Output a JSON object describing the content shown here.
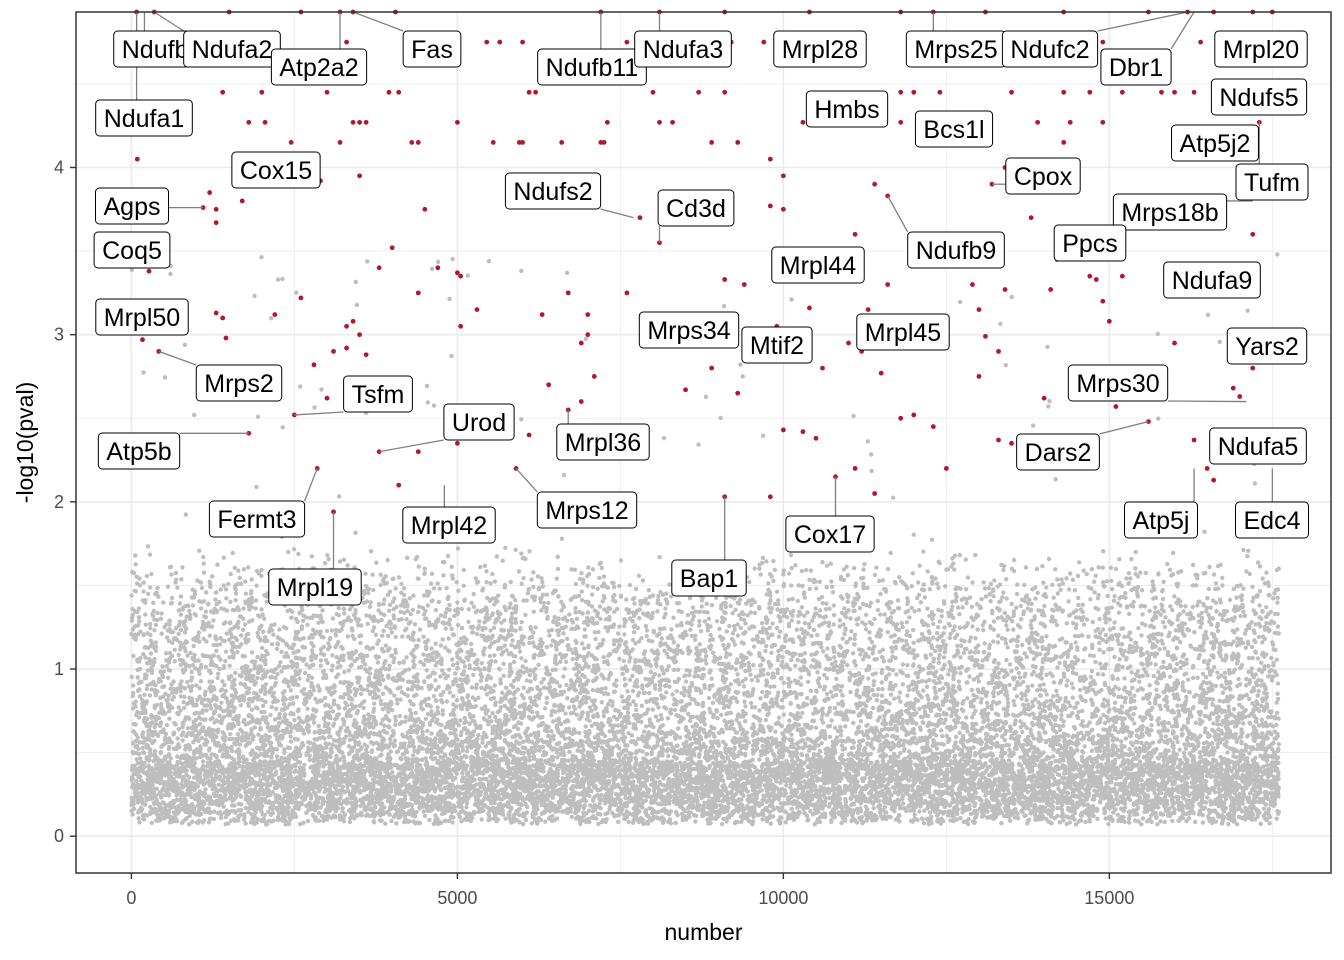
{
  "chart_data": {
    "type": "scatter",
    "title": "",
    "xlabel": "number",
    "ylabel": "-log10(pval)",
    "xlim": [
      -850,
      18400
    ],
    "ylim": [
      -0.22,
      4.93
    ],
    "x_ticks": [
      0,
      5000,
      10000,
      15000
    ],
    "y_ticks": [
      0,
      1,
      2,
      3,
      4
    ],
    "x_tick_labels": [
      "0",
      "5000",
      "10000",
      "15000"
    ],
    "y_tick_labels": [
      "0",
      "1",
      "2",
      "3",
      "4"
    ],
    "grid": true,
    "legend": "none",
    "colors": {
      "background_points": "#bebebe",
      "significant_points": "#b2182b",
      "grid": "#ebebeb",
      "panel_border": "#333333"
    },
    "background_series": {
      "n_points": 17600,
      "x_range": [
        0,
        17600
      ],
      "typical_y_range": [
        0.05,
        1.6
      ],
      "sparse_upper_max": 3.5
    },
    "significant_points": [
      [
        80,
        4.93
      ],
      [
        350,
        4.93
      ],
      [
        1500,
        4.93
      ],
      [
        2600,
        4.93
      ],
      [
        3200,
        4.93
      ],
      [
        3400,
        4.93
      ],
      [
        4050,
        4.93
      ],
      [
        7200,
        4.93
      ],
      [
        8100,
        4.93
      ],
      [
        9100,
        4.93
      ],
      [
        10400,
        4.93
      ],
      [
        11800,
        4.93
      ],
      [
        12300,
        4.93
      ],
      [
        13100,
        4.93
      ],
      [
        14300,
        4.93
      ],
      [
        15600,
        4.93
      ],
      [
        16200,
        4.93
      ],
      [
        16600,
        4.93
      ],
      [
        17200,
        4.93
      ],
      [
        17500,
        4.93
      ],
      [
        1900,
        4.75
      ],
      [
        3300,
        4.75
      ],
      [
        5450,
        4.75
      ],
      [
        5650,
        4.75
      ],
      [
        6000,
        4.75
      ],
      [
        7600,
        4.75
      ],
      [
        7900,
        4.75
      ],
      [
        8300,
        4.75
      ],
      [
        9200,
        4.75
      ],
      [
        9700,
        4.75
      ],
      [
        11200,
        4.75
      ],
      [
        14900,
        4.75
      ],
      [
        16400,
        4.75
      ],
      [
        16800,
        4.75
      ],
      [
        1400,
        4.45
      ],
      [
        2000,
        4.45
      ],
      [
        3000,
        4.45
      ],
      [
        3950,
        4.45
      ],
      [
        4100,
        4.45
      ],
      [
        6100,
        4.45
      ],
      [
        6200,
        4.45
      ],
      [
        8000,
        4.45
      ],
      [
        8700,
        4.45
      ],
      [
        9100,
        4.45
      ],
      [
        11800,
        4.45
      ],
      [
        12000,
        4.45
      ],
      [
        12400,
        4.45
      ],
      [
        13500,
        4.45
      ],
      [
        14300,
        4.45
      ],
      [
        14700,
        4.45
      ],
      [
        15200,
        4.45
      ],
      [
        15800,
        4.45
      ],
      [
        16000,
        4.45
      ],
      [
        16300,
        4.45
      ],
      [
        1800,
        4.27
      ],
      [
        2050,
        4.27
      ],
      [
        3400,
        4.27
      ],
      [
        3500,
        4.27
      ],
      [
        3600,
        4.27
      ],
      [
        5000,
        4.27
      ],
      [
        7300,
        4.27
      ],
      [
        8100,
        4.27
      ],
      [
        8300,
        4.27
      ],
      [
        10300,
        4.27
      ],
      [
        11200,
        4.27
      ],
      [
        11800,
        4.27
      ],
      [
        12700,
        4.27
      ],
      [
        13900,
        4.27
      ],
      [
        14400,
        4.27
      ],
      [
        14900,
        4.27
      ],
      [
        17300,
        4.27
      ],
      [
        2450,
        4.15
      ],
      [
        3200,
        4.15
      ],
      [
        4300,
        4.15
      ],
      [
        4400,
        4.15
      ],
      [
        5550,
        4.15
      ],
      [
        5950,
        4.15
      ],
      [
        6000,
        4.15
      ],
      [
        6600,
        4.15
      ],
      [
        7200,
        4.15
      ],
      [
        7250,
        4.15
      ],
      [
        8900,
        4.15
      ],
      [
        9300,
        4.15
      ],
      [
        12600,
        4.15
      ],
      [
        14300,
        4.15
      ],
      [
        16600,
        4.15
      ],
      [
        90,
        4.05
      ],
      [
        9800,
        4.05
      ],
      [
        13400,
        4.0
      ],
      [
        3500,
        3.95
      ],
      [
        2900,
        3.92
      ],
      [
        10000,
        3.95
      ],
      [
        11400,
        3.9
      ],
      [
        13200,
        3.9
      ],
      [
        1200,
        3.85
      ],
      [
        11600,
        3.83
      ],
      [
        1100,
        3.76
      ],
      [
        1300,
        3.75
      ],
      [
        1700,
        3.8
      ],
      [
        9800,
        3.77
      ],
      [
        10000,
        3.75
      ],
      [
        4500,
        3.75
      ],
      [
        13800,
        3.7
      ],
      [
        7800,
        3.7
      ],
      [
        1300,
        3.67
      ],
      [
        8100,
        3.55
      ],
      [
        17200,
        3.6
      ],
      [
        11100,
        3.6
      ],
      [
        270,
        3.38
      ],
      [
        4000,
        3.52
      ],
      [
        14200,
        3.45
      ],
      [
        14300,
        3.5
      ],
      [
        3800,
        3.4
      ],
      [
        4700,
        3.4
      ],
      [
        5000,
        3.37
      ],
      [
        5050,
        3.35
      ],
      [
        9100,
        3.33
      ],
      [
        9400,
        3.3
      ],
      [
        10200,
        3.33
      ],
      [
        11600,
        3.3
      ],
      [
        12900,
        3.3
      ],
      [
        13400,
        3.27
      ],
      [
        14700,
        3.35
      ],
      [
        14800,
        3.33
      ],
      [
        15200,
        3.35
      ],
      [
        2600,
        3.22
      ],
      [
        4400,
        3.25
      ],
      [
        6700,
        3.25
      ],
      [
        7600,
        3.25
      ],
      [
        14100,
        3.27
      ],
      [
        1300,
        3.13
      ],
      [
        1400,
        3.1
      ],
      [
        2200,
        3.12
      ],
      [
        5300,
        3.15
      ],
      [
        6300,
        3.12
      ],
      [
        7000,
        3.12
      ],
      [
        10400,
        3.16
      ],
      [
        11300,
        3.15
      ],
      [
        13000,
        3.15
      ],
      [
        14900,
        3.2
      ],
      [
        15000,
        3.08
      ],
      [
        3300,
        3.05
      ],
      [
        3400,
        3.08
      ],
      [
        3500,
        3.0
      ],
      [
        5050,
        3.05
      ],
      [
        7000,
        3.0
      ],
      [
        8800,
        3.05
      ],
      [
        9900,
        3.05
      ],
      [
        12200,
        3.05
      ],
      [
        13100,
        2.99
      ],
      [
        170,
        2.97
      ],
      [
        420,
        2.9
      ],
      [
        1450,
        2.98
      ],
      [
        3100,
        2.9
      ],
      [
        3300,
        2.92
      ],
      [
        3600,
        2.88
      ],
      [
        6900,
        2.95
      ],
      [
        8900,
        2.8
      ],
      [
        11000,
        2.95
      ],
      [
        11200,
        2.9
      ],
      [
        10600,
        2.8
      ],
      [
        13300,
        2.9
      ],
      [
        16000,
        2.95
      ],
      [
        17200,
        2.8
      ],
      [
        9500,
        2.85
      ],
      [
        2800,
        2.82
      ],
      [
        13000,
        2.75
      ],
      [
        7100,
        2.75
      ],
      [
        11500,
        2.77
      ],
      [
        6400,
        2.7
      ],
      [
        8500,
        2.67
      ],
      [
        9300,
        2.65
      ],
      [
        16900,
        2.68
      ],
      [
        17000,
        2.63
      ],
      [
        3000,
        2.62
      ],
      [
        6900,
        2.6
      ],
      [
        14000,
        2.62
      ],
      [
        15100,
        2.57
      ],
      [
        6700,
        2.55
      ],
      [
        11800,
        2.5
      ],
      [
        12000,
        2.52
      ],
      [
        15600,
        2.48
      ],
      [
        12300,
        2.45
      ],
      [
        10000,
        2.43
      ],
      [
        10300,
        2.42
      ],
      [
        10500,
        2.38
      ],
      [
        13300,
        2.37
      ],
      [
        13500,
        2.35
      ],
      [
        16300,
        2.37
      ],
      [
        1800,
        2.41
      ],
      [
        2500,
        2.52
      ],
      [
        3800,
        2.3
      ],
      [
        4400,
        2.3
      ],
      [
        5000,
        2.35
      ],
      [
        6100,
        2.4
      ],
      [
        2850,
        2.2
      ],
      [
        5900,
        2.2
      ],
      [
        11100,
        2.2
      ],
      [
        12500,
        2.2
      ],
      [
        16500,
        2.2
      ],
      [
        10800,
        2.15
      ],
      [
        4100,
        2.1
      ],
      [
        16600,
        2.13
      ],
      [
        11400,
        2.05
      ],
      [
        9800,
        2.03
      ],
      [
        9100,
        2.03
      ],
      [
        3100,
        1.94
      ]
    ],
    "annotations": [
      {
        "label": "Ndufb10",
        "x": 200,
        "y": 4.93
      },
      {
        "label": "Ndufa2",
        "x": 350,
        "y": 4.93
      },
      {
        "label": "Atp2a2",
        "x": 3200,
        "y": 4.93
      },
      {
        "label": "Fas",
        "x": 3400,
        "y": 4.93
      },
      {
        "label": "Ndufb11",
        "x": 7200,
        "y": 4.93
      },
      {
        "label": "Ndufa3",
        "x": 8100,
        "y": 4.93
      },
      {
        "label": "Mrpl28",
        "x": 9700,
        "y": 4.75
      },
      {
        "label": "Mrps25",
        "x": 12300,
        "y": 4.93
      },
      {
        "label": "Ndufc2",
        "x": 16200,
        "y": 4.93
      },
      {
        "label": "Dbr1",
        "x": 16300,
        "y": 4.93
      },
      {
        "label": "Mrpl20",
        "x": 16800,
        "y": 4.75
      },
      {
        "label": "Ndufa1",
        "x": 80,
        "y": 4.93
      },
      {
        "label": "Ndufs5",
        "x": 16600,
        "y": 4.45
      },
      {
        "label": "Hmbs",
        "x": 10300,
        "y": 4.27
      },
      {
        "label": "Bcs1l",
        "x": 12600,
        "y": 4.15
      },
      {
        "label": "Atp5j2",
        "x": 16600,
        "y": 4.05
      },
      {
        "label": "Cox15",
        "x": 2900,
        "y": 3.92
      },
      {
        "label": "Cpox",
        "x": 13200,
        "y": 3.9
      },
      {
        "label": "Tufm",
        "x": 17300,
        "y": 4.27
      },
      {
        "label": "Agps",
        "x": 1100,
        "y": 3.76
      },
      {
        "label": "Ndufs2",
        "x": 7700,
        "y": 3.7
      },
      {
        "label": "Cd3d",
        "x": 8100,
        "y": 3.55
      },
      {
        "label": "Mrps18b",
        "x": 17200,
        "y": 3.8
      },
      {
        "label": "Ndufb9",
        "x": 11600,
        "y": 3.83
      },
      {
        "label": "Ppcs",
        "x": 14300,
        "y": 3.45
      },
      {
        "label": "Coq5",
        "x": 270,
        "y": 3.38
      },
      {
        "label": "Mrpl44",
        "x": 10200,
        "y": 3.33
      },
      {
        "label": "Ndufa9",
        "x": 15800,
        "y": 3.35
      },
      {
        "label": "Mrpl50",
        "x": 170,
        "y": 2.97
      },
      {
        "label": "Mrps34",
        "x": 8900,
        "y": 3.05
      },
      {
        "label": "Mtif2",
        "x": 9900,
        "y": 2.98
      },
      {
        "label": "Mrpl45",
        "x": 11300,
        "y": 2.95
      },
      {
        "label": "Yars2",
        "x": 17200,
        "y": 2.8
      },
      {
        "label": "Mrps2",
        "x": 420,
        "y": 2.9
      },
      {
        "label": "Mrps30",
        "x": 17100,
        "y": 2.6
      },
      {
        "label": "Tsfm",
        "x": 2500,
        "y": 2.52
      },
      {
        "label": "Urod",
        "x": 3800,
        "y": 2.3
      },
      {
        "label": "Atp5b",
        "x": 1800,
        "y": 2.41
      },
      {
        "label": "Mrpl36",
        "x": 6700,
        "y": 2.55
      },
      {
        "label": "Dars2",
        "x": 15600,
        "y": 2.48
      },
      {
        "label": "Ndufa5",
        "x": 16500,
        "y": 2.3
      },
      {
        "label": "Fermt3",
        "x": 2850,
        "y": 2.2
      },
      {
        "label": "Mrps12",
        "x": 5900,
        "y": 2.2
      },
      {
        "label": "Mrpl42",
        "x": 4800,
        "y": 2.1
      },
      {
        "label": "Atp5j",
        "x": 16300,
        "y": 2.2
      },
      {
        "label": "Edc4",
        "x": 17500,
        "y": 2.2
      },
      {
        "label": "Cox17",
        "x": 10800,
        "y": 2.15
      },
      {
        "label": "Bap1",
        "x": 9100,
        "y": 2.03
      },
      {
        "label": "Mrpl19",
        "x": 3100,
        "y": 1.94
      }
    ]
  }
}
